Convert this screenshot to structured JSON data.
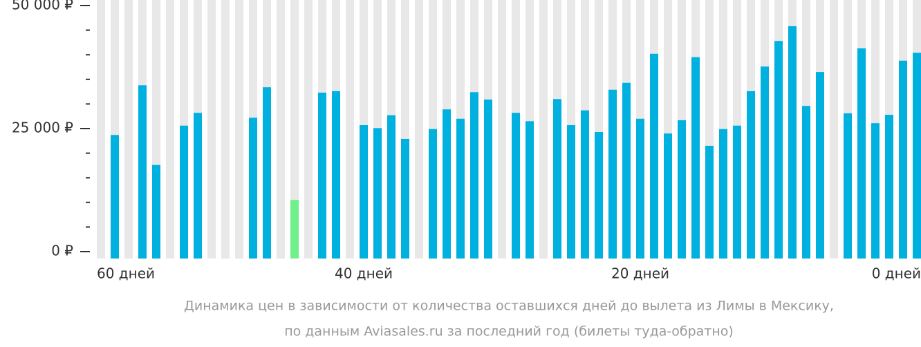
{
  "chart_data": {
    "type": "bar",
    "caption": [
      "Динамика цен в зависимости от количества оставшихся дней до вылета из Лимы в Мексику,",
      "по данным Aviasales.ru за последний год (билеты туда-обратно)"
    ],
    "categories": [
      "60 дней",
      null,
      null,
      null,
      null,
      null,
      null,
      null,
      null,
      null,
      null,
      null,
      null,
      null,
      null,
      null,
      null,
      null,
      null,
      "40 дней",
      null,
      null,
      null,
      null,
      null,
      null,
      null,
      null,
      null,
      null,
      null,
      null,
      null,
      null,
      null,
      null,
      null,
      null,
      null,
      "20 дней",
      null,
      null,
      null,
      null,
      null,
      null,
      null,
      null,
      null,
      null,
      null,
      null,
      null,
      null,
      null,
      null,
      null,
      null,
      null,
      "0 дней"
    ],
    "values": [
      null,
      23700,
      null,
      33800,
      17600,
      null,
      25600,
      28200,
      null,
      null,
      null,
      27200,
      33400,
      null,
      10500,
      null,
      32300,
      32600,
      null,
      25700,
      25100,
      27700,
      22900,
      null,
      24900,
      28900,
      27000,
      32400,
      30900,
      null,
      28200,
      26500,
      null,
      31000,
      25700,
      28700,
      24300,
      32900,
      34300,
      27000,
      40200,
      24000,
      26700,
      39500,
      21500,
      24900,
      25600,
      32600,
      37600,
      42800,
      45800,
      29600,
      36500,
      null,
      28100,
      41300,
      26100,
      27800,
      38800,
      40400
    ],
    "color": "#00b0de",
    "highlight": {
      "index": 14,
      "color": "#6ef08a"
    },
    "background_color": "#e8e8e8",
    "ylim": [
      0,
      50000
    ],
    "yticks": [
      {
        "value": 0,
        "label": "0 ₽"
      },
      {
        "value": 25000,
        "label": "25 000 ₽"
      },
      {
        "value": 50000,
        "label": "50 000 ₽"
      }
    ],
    "yticks_minor": [
      5000,
      10000,
      15000,
      20000,
      30000,
      35000,
      40000,
      45000
    ]
  }
}
